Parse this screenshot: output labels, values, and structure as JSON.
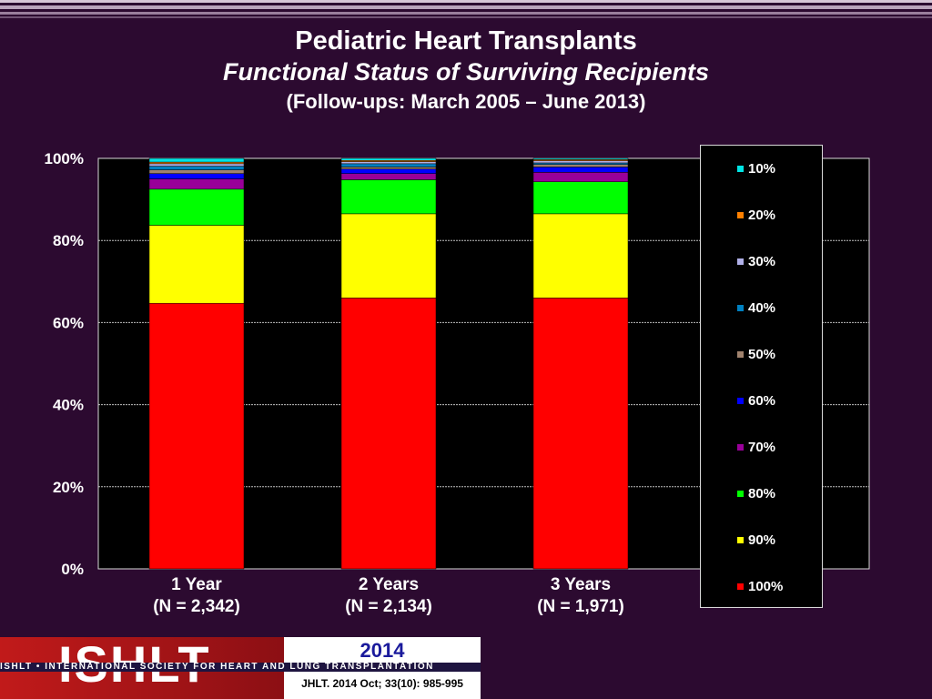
{
  "header": {
    "title": "Pediatric Heart Transplants",
    "subtitle": "Functional Status of Surviving Recipients",
    "note": "(Follow-ups: March 2005 – June 2013)"
  },
  "colors": {
    "100%": "#ff0000",
    "90%": "#ffff00",
    "80%": "#00ff00",
    "70%": "#990099",
    "60%": "#0000ff",
    "50%": "#a0826d",
    "40%": "#0080c0",
    "30%": "#b0b0e8",
    "20%": "#ff8000",
    "10%": "#00e5e5"
  },
  "chart_data": {
    "type": "bar",
    "stacked": true,
    "categories": [
      {
        "line1": "1 Year",
        "line2": "(N = 2,342)"
      },
      {
        "line1": "2 Years",
        "line2": "(N = 2,134)"
      },
      {
        "line1": "3 Years",
        "line2": "(N = 1,971)"
      }
    ],
    "series": [
      {
        "name": "100%",
        "values": [
          64.7,
          66.0,
          66.0
        ]
      },
      {
        "name": "90%",
        "values": [
          19.0,
          20.5,
          20.5
        ]
      },
      {
        "name": "80%",
        "values": [
          8.8,
          8.3,
          7.8
        ]
      },
      {
        "name": "70%",
        "values": [
          2.5,
          1.5,
          2.3
        ]
      },
      {
        "name": "60%",
        "values": [
          1.3,
          1.1,
          1.3
        ]
      },
      {
        "name": "50%",
        "values": [
          0.9,
          0.5,
          0.6
        ]
      },
      {
        "name": "40%",
        "values": [
          0.9,
          0.8,
          0.4
        ]
      },
      {
        "name": "30%",
        "values": [
          0.6,
          0.5,
          0.5
        ]
      },
      {
        "name": "20%",
        "values": [
          0.4,
          0.3,
          0.3
        ]
      },
      {
        "name": "10%",
        "values": [
          0.9,
          0.5,
          0.3
        ]
      }
    ],
    "yticks": [
      "0%",
      "20%",
      "40%",
      "60%",
      "80%",
      "100%"
    ],
    "ylim": [
      0,
      100
    ],
    "grid": true,
    "legend_position": "right",
    "legend_order": [
      "10%",
      "20%",
      "30%",
      "40%",
      "50%",
      "60%",
      "70%",
      "80%",
      "90%",
      "100%"
    ]
  },
  "footer": {
    "logo": "ISHLT",
    "year": "2014",
    "org": "ISHLT • INTERNATIONAL SOCIETY FOR HEART AND LUNG TRANSPLANTATION",
    "citation": "JHLT. 2014 Oct; 33(10): 985-995"
  }
}
